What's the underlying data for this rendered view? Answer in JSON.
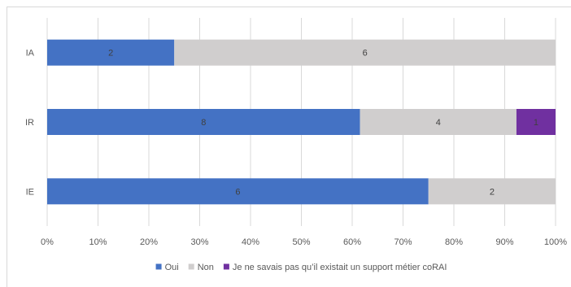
{
  "chart_data": {
    "type": "bar",
    "orientation": "horizontal",
    "stacked": "percent",
    "title": "",
    "xlabel": "",
    "ylabel": "",
    "categories": [
      "IA",
      "IR",
      "IE"
    ],
    "series": [
      {
        "name": "Oui",
        "color": "#4472c4",
        "values": [
          2,
          8,
          6
        ]
      },
      {
        "name": "Non",
        "color": "#d0cece",
        "values": [
          6,
          4,
          2
        ]
      },
      {
        "name": "Je ne savais pas qu’il existait un support métier coRAI",
        "color": "#7030a0",
        "values": [
          0,
          1,
          0
        ]
      }
    ],
    "x_ticks": [
      "0%",
      "10%",
      "20%",
      "30%",
      "40%",
      "50%",
      "60%",
      "70%",
      "80%",
      "90%",
      "100%"
    ],
    "xlim": [
      0,
      100
    ],
    "grid": "vertical",
    "legend_position": "bottom"
  }
}
